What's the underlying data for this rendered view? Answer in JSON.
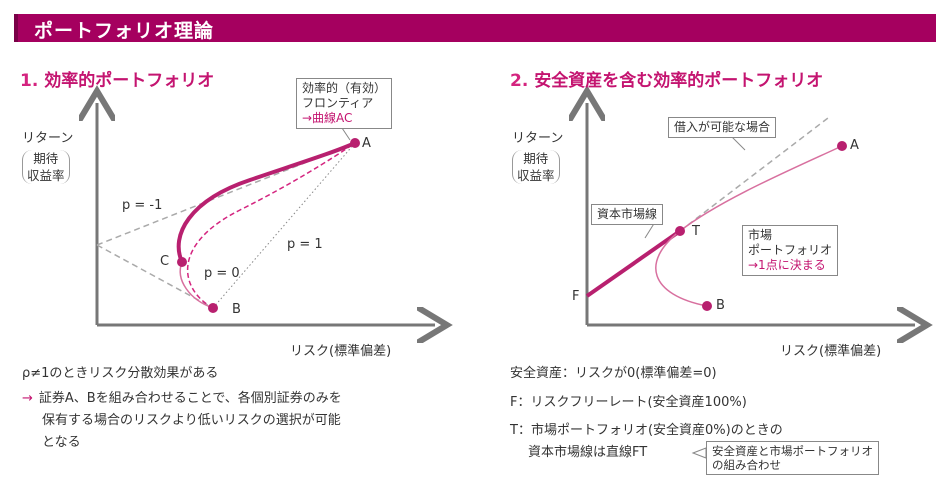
{
  "header": {
    "title": "ポートフォリオ理論"
  },
  "left": {
    "number": "1.",
    "title": "効率的ポートフォリオ",
    "ylabel": "リターン",
    "ysub": [
      "期待",
      "収益率"
    ],
    "xlabel": "リスク(標準偏差)",
    "callout": [
      "効率的（有効）",
      "フロンティア",
      "→曲線AC"
    ],
    "points": {
      "A": "A",
      "B": "B",
      "C": "C"
    },
    "rho_neg1": "p = -1",
    "rho_0": "p = 0",
    "rho_1": "p = 1",
    "notes": [
      "ρ≠1のときリスク分散効果がある",
      "証券A、Bを組み合わせることで、各個別証券のみを",
      "保有する場合のリスクより低いリスクの選択が可能",
      "となる"
    ],
    "note_arrow": "→"
  },
  "right": {
    "number": "2.",
    "title": "安全資産を含む効率的ポートフォリオ",
    "ylabel": "リターン",
    "ysub": [
      "期待",
      "収益率"
    ],
    "xlabel": "リスク(標準偏差)",
    "callout_borrow": "借入が可能な場合",
    "callout_cml": "資本市場線",
    "callout_market": [
      "市場",
      "ポートフォリオ",
      "→1点に決まる"
    ],
    "points": {
      "A": "A",
      "B": "B",
      "T": "T",
      "F": "F"
    },
    "notes": [
      "安全資産：リスクが0(標準偏差=0)",
      "F：リスクフリーレート(安全資産100%)",
      "T：市場ポートフォリオ(安全資産0%)のときの",
      "資本市場線は直線FT"
    ],
    "callout_ft": [
      "安全資産と市場ポートフォリオ",
      "の組み合わせ"
    ]
  },
  "colors": {
    "accent": "#a5005f",
    "curve": "#b8206f",
    "light": "#d8709f"
  }
}
